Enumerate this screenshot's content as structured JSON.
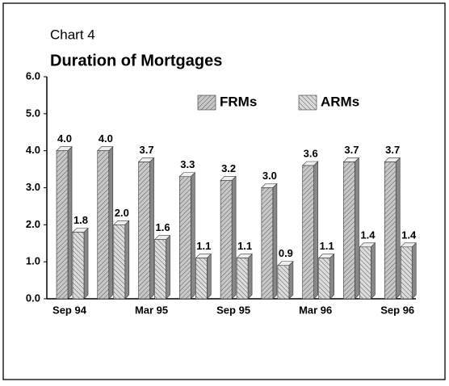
{
  "chart_data": {
    "type": "bar",
    "subtitle": "Chart 4",
    "title": "Duration of Mortgages",
    "categories": [
      "Sep 94",
      null,
      "Mar 95",
      null,
      "Sep 95",
      null,
      "Mar 96",
      null,
      "Sep 96"
    ],
    "series": [
      {
        "name": "FRMs",
        "color": "#c8c8c8",
        "values": [
          4.0,
          4.0,
          3.7,
          3.3,
          3.2,
          3.0,
          3.6,
          3.7,
          3.7
        ],
        "value_labels": [
          "4.0",
          "4.0",
          "3.7",
          "3.3",
          "3.2",
          "3.0",
          "3.6",
          "3.7",
          "3.7"
        ]
      },
      {
        "name": "ARMs",
        "color": "#dcdcdc",
        "values": [
          1.8,
          2.0,
          1.6,
          1.1,
          1.1,
          0.9,
          1.1,
          1.4,
          1.4
        ],
        "value_labels": [
          "1.8",
          "2.0",
          "1.6",
          "1.1",
          "1.1",
          "0.9",
          "1.1",
          "1.4",
          "1.4"
        ]
      }
    ],
    "ylim": [
      0,
      6
    ],
    "yticks": [
      {
        "value": 0,
        "label": "0.0"
      },
      {
        "value": 1,
        "label": "1.0"
      },
      {
        "value": 2,
        "label": "2.0"
      },
      {
        "value": 3,
        "label": "3.0"
      },
      {
        "value": 4,
        "label": "4.0"
      },
      {
        "value": 5,
        "label": "5.0"
      },
      {
        "value": 6,
        "label": "6.0"
      }
    ],
    "legend": "top-right"
  }
}
